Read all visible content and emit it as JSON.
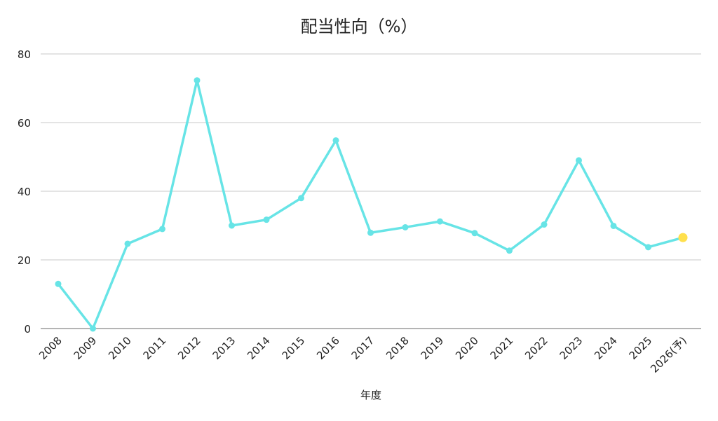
{
  "chart_data": {
    "type": "line",
    "title": "配当性向（%）",
    "xlabel": "年度",
    "ylabel": "",
    "ylim": [
      0,
      80
    ],
    "yticks": [
      0,
      20,
      40,
      60,
      80
    ],
    "grid": true,
    "categories": [
      "2008",
      "2009",
      "2010",
      "2011",
      "2012",
      "2013",
      "2014",
      "2015",
      "2016",
      "2017",
      "2018",
      "2019",
      "2020",
      "2021",
      "2022",
      "2023",
      "2024",
      "2025",
      "2026(予)"
    ],
    "series": [
      {
        "values": [
          13.0,
          0.0,
          24.7,
          29.0,
          72.3,
          30.0,
          31.7,
          38.0,
          54.8,
          27.9,
          29.5,
          31.2,
          27.8,
          22.7,
          30.3,
          49.0,
          29.9,
          23.7,
          26.5
        ],
        "color": "#67e4e6",
        "forecast_marker_color": "#ffe04d"
      }
    ]
  }
}
